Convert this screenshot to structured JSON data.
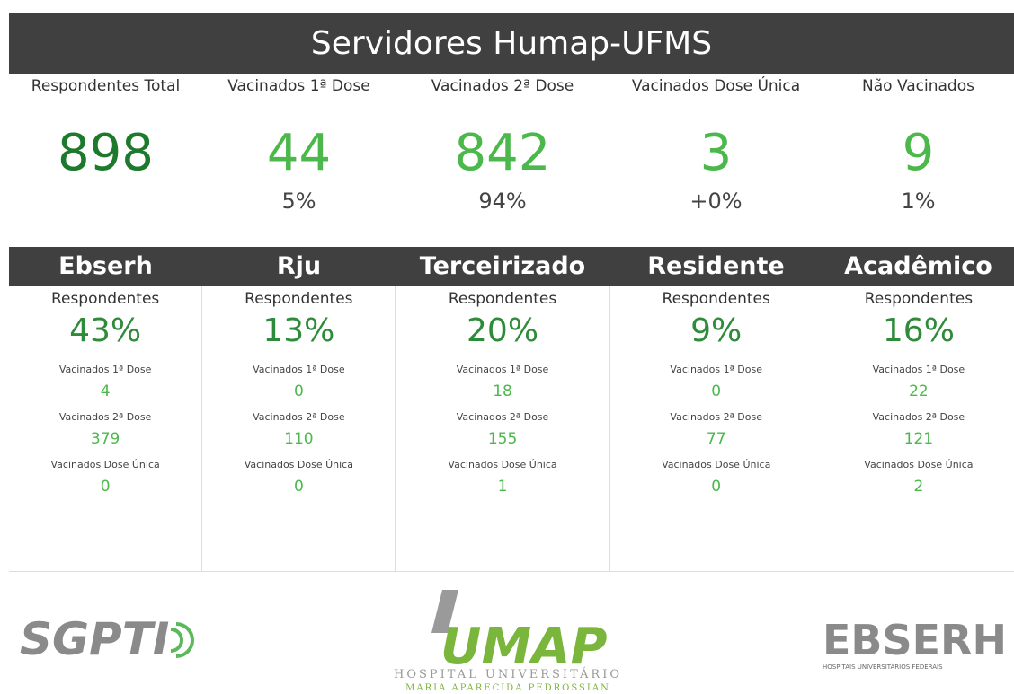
{
  "header": {
    "title": "Servidores Humap-UFMS"
  },
  "summary": [
    {
      "label": "Respondentes Total",
      "value": "898"
    },
    {
      "label": "Vacinados 1ª Dose",
      "value": "44",
      "percent": "5%"
    },
    {
      "label": "Vacinados 2ª Dose",
      "value": "842",
      "percent": "94%"
    },
    {
      "label": "Vacinados Dose Única",
      "value": "3",
      "percent": "+0%"
    },
    {
      "label": "Não Vacinados",
      "value": "9",
      "percent": "1%"
    }
  ],
  "groups": [
    {
      "name": "Ebserh",
      "respondents_label": "Respondentes",
      "respondents": "43%",
      "metrics": [
        {
          "label": "Vacinados 1ª Dose",
          "value": "4"
        },
        {
          "label": "Vacinados 2ª Dose",
          "value": "379"
        },
        {
          "label": "Vacinados Dose Única",
          "value": "0"
        }
      ]
    },
    {
      "name": "Rju",
      "respondents_label": "Respondentes",
      "respondents": "13%",
      "metrics": [
        {
          "label": "Vacinados 1ª Dose",
          "value": "0"
        },
        {
          "label": "Vacinados 2ª Dose",
          "value": "110"
        },
        {
          "label": "Vacinados Dose Única",
          "value": "0"
        }
      ]
    },
    {
      "name": "Terceirizado",
      "respondents_label": "Respondentes",
      "respondents": "20%",
      "metrics": [
        {
          "label": "Vacinados 1ª Dose",
          "value": "18"
        },
        {
          "label": "Vacinados 2ª Dose",
          "value": "155"
        },
        {
          "label": "Vacinados Dose Única",
          "value": "1"
        }
      ]
    },
    {
      "name": "Residente",
      "respondents_label": "Respondentes",
      "respondents": "9%",
      "metrics": [
        {
          "label": "Vacinados 1ª Dose",
          "value": "0"
        },
        {
          "label": "Vacinados 2ª Dose",
          "value": "77"
        },
        {
          "label": "Vacinados Dose Única",
          "value": "0"
        }
      ]
    },
    {
      "name": "Acadêmico",
      "respondents_label": "Respondentes",
      "respondents": "16%",
      "metrics": [
        {
          "label": "Vacinados 1ª Dose",
          "value": "22"
        },
        {
          "label": "Vacinados 2ª Dose",
          "value": "121"
        },
        {
          "label": "Vacinados Dose Única",
          "value": "2"
        }
      ]
    }
  ],
  "logos": {
    "sgpti": "SGPTI",
    "humap": "UMAP",
    "humap_line1": "HOSPITAL UNIVERSITÁRIO",
    "humap_line2": "MARIA APARECIDA PEDROSSIAN",
    "ebserh": "EBSERH",
    "ebserh_sub": "HOSPITAIS UNIVERSITÁRIOS FEDERAIS"
  }
}
